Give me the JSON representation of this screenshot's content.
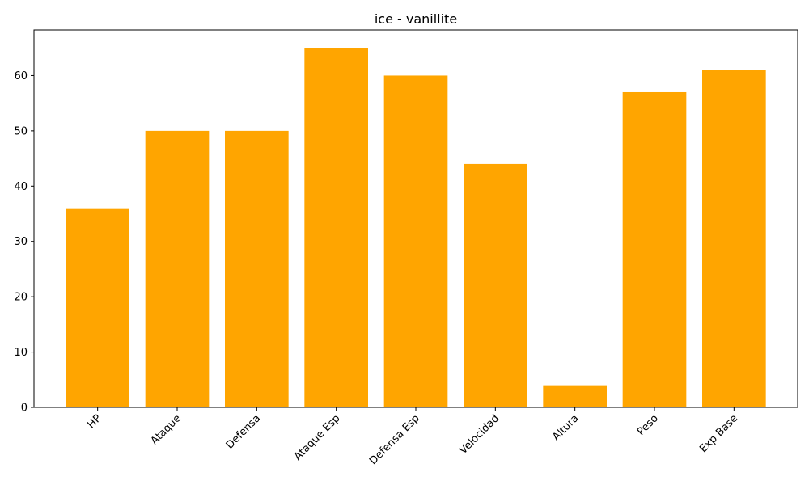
{
  "chart_data": {
    "type": "bar",
    "title": "ice - vanillite",
    "xlabel": "",
    "ylabel": "",
    "categories": [
      "HP",
      "Ataque",
      "Defensa",
      "Ataque Esp",
      "Defensa Esp",
      "Velocidad",
      "Altura",
      "Peso",
      "Exp Base"
    ],
    "values": [
      36,
      50,
      50,
      65,
      60,
      44,
      4,
      57,
      61
    ],
    "ylim": [
      0,
      68.25
    ],
    "yticks": [
      0,
      10,
      20,
      30,
      40,
      50,
      60
    ],
    "bar_color": "#FFA500",
    "grid": false,
    "legend": "none"
  }
}
